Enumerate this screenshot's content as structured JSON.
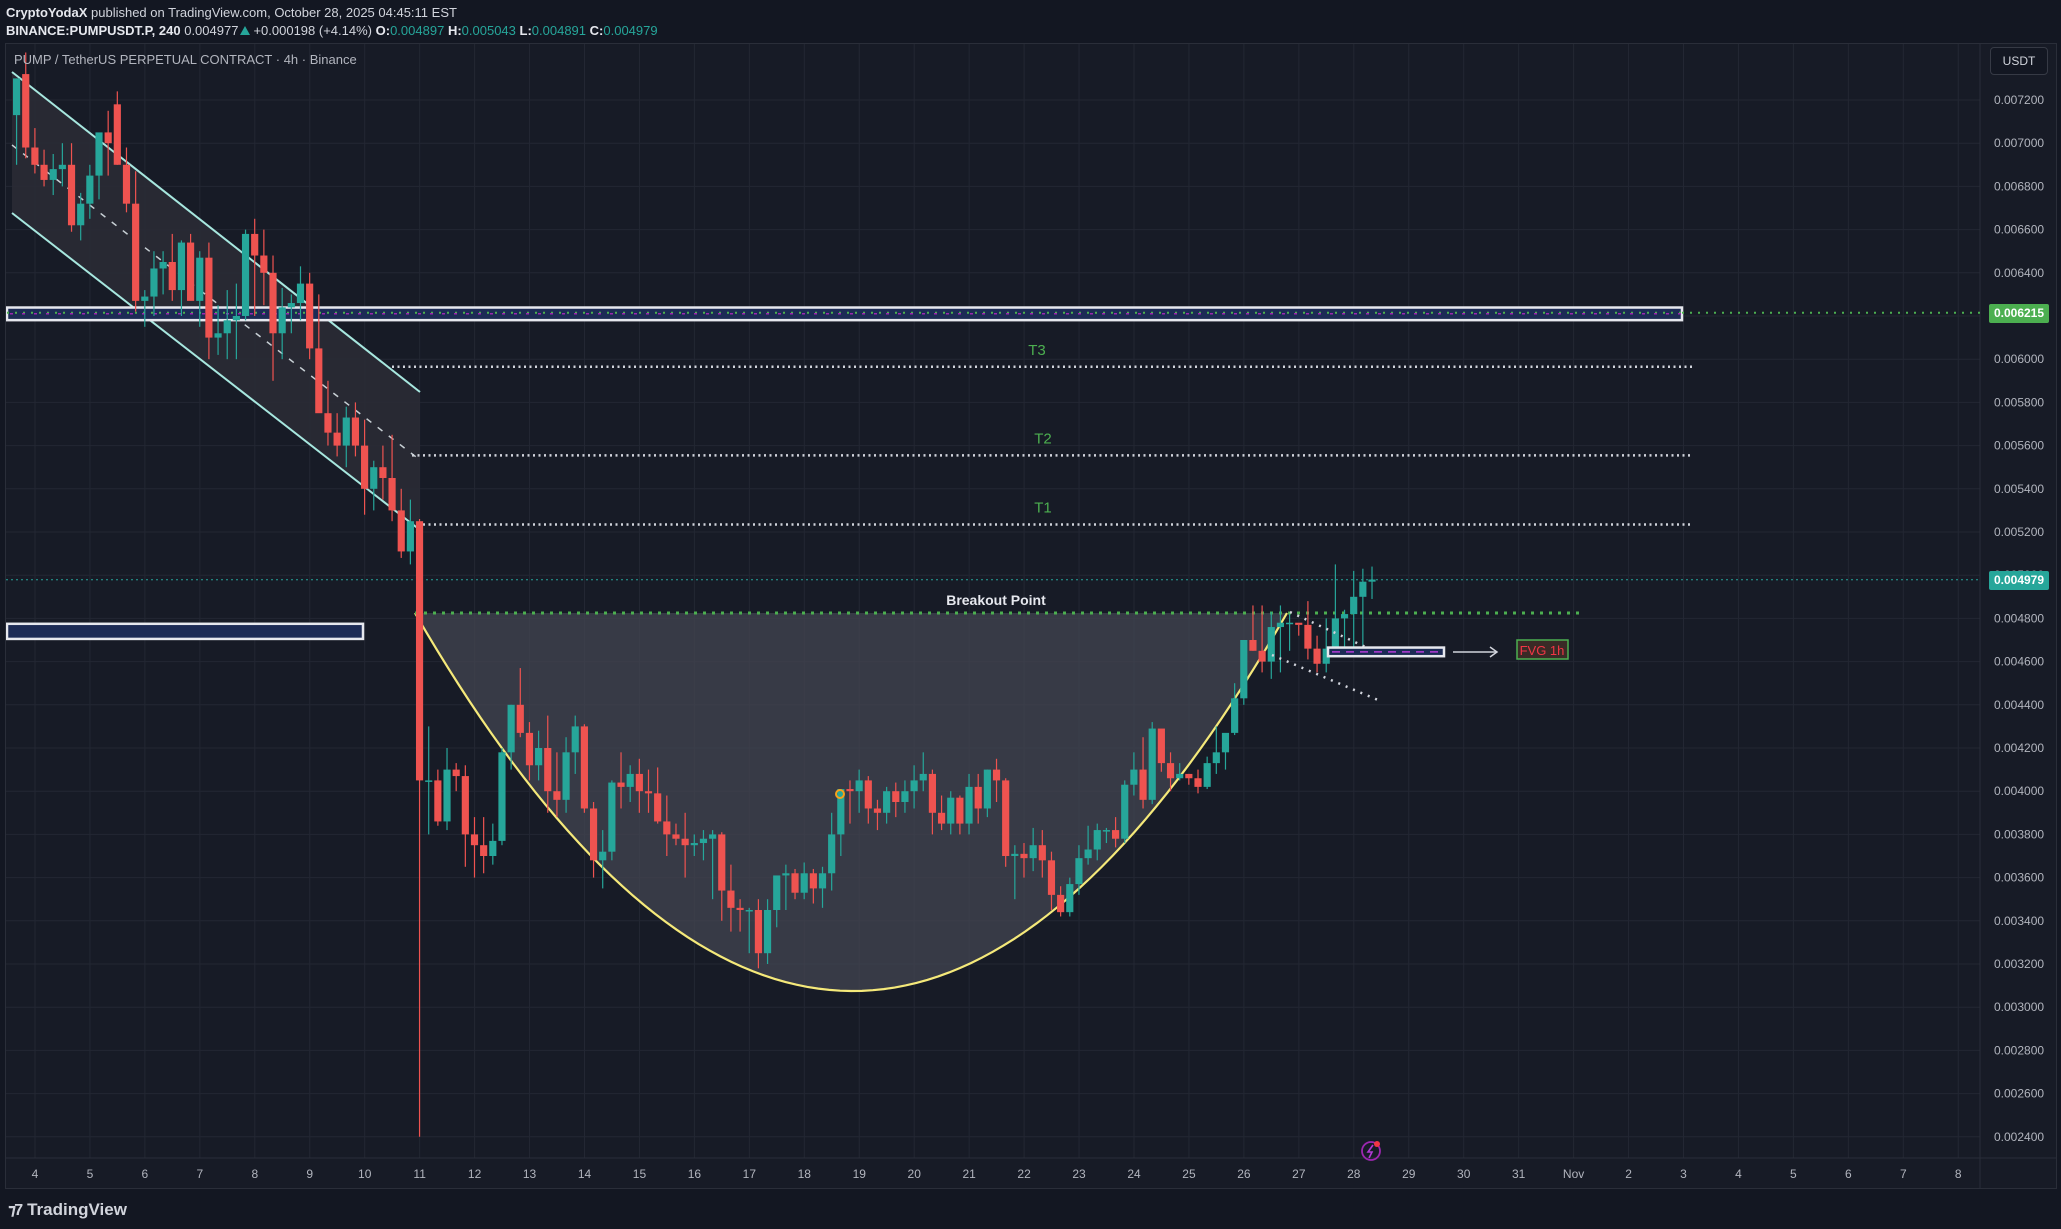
{
  "header": {
    "author": "CryptoYodaX",
    "published_text": " published on TradingView.com, October 28, 2025 04:45:11 EST",
    "symbol": "BINANCE:PUMPUSDT.P, 240",
    "last": "0.004977",
    "change": "+0.000198 (+4.14%)",
    "o_label": "O:",
    "o": "0.004897",
    "h_label": "H:",
    "h": "0.005043",
    "l_label": "L:",
    "l": "0.004891",
    "c_label": "C:",
    "c": "0.004979"
  },
  "legend": "PUMP / TetherUS PERPETUAL CONTRACT · 4h · Binance",
  "currency_button": "USDT",
  "price_tags": {
    "resistance": {
      "value": "0.006215",
      "color": "#4caf50"
    },
    "last": {
      "value": "0.004979",
      "color": "#26a69a"
    }
  },
  "footer": {
    "logo_text": "TradingView"
  },
  "colors": {
    "up": "#26a69a",
    "down": "#ef5350",
    "background": "#171b26",
    "grid": "#232733",
    "cup_line": "#f5e97a",
    "cup_fill": "#434651",
    "channel": "#a7e7df",
    "target_label": "#4caf50",
    "fvg_text": "#f23645"
  },
  "chart_data": {
    "type": "candlestick",
    "title": "PUMP / TetherUS PERPETUAL CONTRACT · 4h · Binance",
    "xlabel": "",
    "ylabel": "USDT",
    "ylim": [
      0.00226,
      0.00737
    ],
    "grid": true,
    "y_ticks": [
      "0.007200",
      "0.007000",
      "0.006800",
      "0.006600",
      "0.006400",
      "0.006200",
      "0.006000",
      "0.005800",
      "0.005600",
      "0.005400",
      "0.005200",
      "0.005000",
      "0.004800",
      "0.004600",
      "0.004400",
      "0.004200",
      "0.004000",
      "0.003800",
      "0.003600",
      "0.003400",
      "0.003200",
      "0.003000",
      "0.002800",
      "0.002600",
      "0.002400"
    ],
    "x_ticks": [
      "4",
      "5",
      "6",
      "7",
      "8",
      "9",
      "10",
      "11",
      "12",
      "13",
      "14",
      "15",
      "16",
      "17",
      "18",
      "19",
      "20",
      "21",
      "22",
      "23",
      "24",
      "25",
      "26",
      "27",
      "28",
      "29",
      "30",
      "31",
      "Nov",
      "2",
      "3",
      "4",
      "5",
      "6",
      "7",
      "8"
    ],
    "annotations": {
      "targets": [
        {
          "label": "T3",
          "price": 0.005965
        },
        {
          "label": "T2",
          "price": 0.005555
        },
        {
          "label": "T1",
          "price": 0.005235
        }
      ],
      "resistance_zone": {
        "price": 0.006215,
        "top": 0.00623,
        "bottom": 0.00619
      },
      "support_zone_left": {
        "top": 0.004775,
        "bottom": 0.004705
      },
      "breakout_point": {
        "label": "Breakout Point",
        "price": 0.004825
      },
      "fvg": {
        "label": "FVG 1h",
        "top": 0.004665,
        "bottom": 0.004625
      },
      "cup_bottom": 0.003075,
      "descending_channel": true
    },
    "candles": [
      [
        0.00713,
        0.0073,
        0.0069,
        0.0073
      ],
      [
        0.00732,
        0.00742,
        0.00693,
        0.00698
      ],
      [
        0.00698,
        0.00707,
        0.00686,
        0.0069
      ],
      [
        0.0069,
        0.00697,
        0.0068,
        0.00683
      ],
      [
        0.00683,
        0.00695,
        0.00676,
        0.00688
      ],
      [
        0.00688,
        0.007,
        0.0068,
        0.0069
      ],
      [
        0.0069,
        0.007,
        0.00659,
        0.00662
      ],
      [
        0.00662,
        0.00677,
        0.00655,
        0.00672
      ],
      [
        0.00672,
        0.0069,
        0.00665,
        0.00685
      ],
      [
        0.00685,
        0.00698,
        0.00674,
        0.00705
      ],
      [
        0.00705,
        0.00715,
        0.00685,
        0.007
      ],
      [
        0.00718,
        0.00724,
        0.0069,
        0.0069
      ],
      [
        0.0069,
        0.00698,
        0.00668,
        0.00672
      ],
      [
        0.00672,
        0.00687,
        0.00622,
        0.00627
      ],
      [
        0.00627,
        0.00632,
        0.00615,
        0.00629
      ],
      [
        0.00629,
        0.0065,
        0.0062,
        0.00642
      ],
      [
        0.00642,
        0.0065,
        0.0063,
        0.00645
      ],
      [
        0.00645,
        0.00658,
        0.00627,
        0.00632
      ],
      [
        0.00632,
        0.00655,
        0.0062,
        0.00654
      ],
      [
        0.00654,
        0.00658,
        0.0063,
        0.00627
      ],
      [
        0.00627,
        0.0065,
        0.00615,
        0.00647
      ],
      [
        0.00647,
        0.00654,
        0.006,
        0.0061
      ],
      [
        0.0061,
        0.00625,
        0.00602,
        0.00612
      ],
      [
        0.00612,
        0.00632,
        0.006,
        0.00618
      ],
      [
        0.00618,
        0.00635,
        0.006,
        0.0062
      ],
      [
        0.0062,
        0.0066,
        0.00618,
        0.00658
      ],
      [
        0.00658,
        0.00665,
        0.0062,
        0.00648
      ],
      [
        0.00648,
        0.0066,
        0.00625,
        0.0064
      ],
      [
        0.0064,
        0.00648,
        0.0059,
        0.00612
      ],
      [
        0.00612,
        0.00633,
        0.006,
        0.00624
      ],
      [
        0.00624,
        0.0063,
        0.00612,
        0.00626
      ],
      [
        0.00626,
        0.00643,
        0.00618,
        0.00635
      ],
      [
        0.00635,
        0.0064,
        0.006,
        0.00605
      ],
      [
        0.00605,
        0.0063,
        0.0059,
        0.00575
      ],
      [
        0.00575,
        0.0059,
        0.0056,
        0.00566
      ],
      [
        0.00566,
        0.00575,
        0.00555,
        0.0056
      ],
      [
        0.0056,
        0.00578,
        0.0055,
        0.00573
      ],
      [
        0.00573,
        0.0058,
        0.00555,
        0.0056
      ],
      [
        0.0056,
        0.00572,
        0.00528,
        0.0054
      ],
      [
        0.0054,
        0.00553,
        0.0053,
        0.0055
      ],
      [
        0.0055,
        0.0056,
        0.00535,
        0.00545
      ],
      [
        0.00545,
        0.00565,
        0.00525,
        0.0053
      ],
      [
        0.0053,
        0.0054,
        0.00508,
        0.00511
      ],
      [
        0.00511,
        0.00535,
        0.00505,
        0.00525
      ],
      [
        0.00525,
        0.00526,
        0.0024,
        0.00405
      ],
      [
        0.00405,
        0.0043,
        0.0038,
        0.00405
      ],
      [
        0.00405,
        0.0041,
        0.00384,
        0.00386
      ],
      [
        0.00386,
        0.0042,
        0.00382,
        0.0041
      ],
      [
        0.0041,
        0.00413,
        0.004,
        0.00407
      ],
      [
        0.00407,
        0.00412,
        0.00365,
        0.0038
      ],
      [
        0.0038,
        0.00388,
        0.0036,
        0.00375
      ],
      [
        0.00375,
        0.00388,
        0.00362,
        0.0037
      ],
      [
        0.0037,
        0.00385,
        0.00366,
        0.00377
      ],
      [
        0.00377,
        0.0042,
        0.00375,
        0.00418
      ],
      [
        0.00418,
        0.0044,
        0.0041,
        0.0044
      ],
      [
        0.0044,
        0.00457,
        0.00425,
        0.00427
      ],
      [
        0.00427,
        0.00432,
        0.00405,
        0.00412
      ],
      [
        0.00412,
        0.00428,
        0.00405,
        0.0042
      ],
      [
        0.0042,
        0.00435,
        0.0039,
        0.004
      ],
      [
        0.004,
        0.00418,
        0.00388,
        0.00396
      ],
      [
        0.00396,
        0.00425,
        0.0039,
        0.00418
      ],
      [
        0.00418,
        0.00435,
        0.00408,
        0.0043
      ],
      [
        0.0043,
        0.00431,
        0.0039,
        0.00392
      ],
      [
        0.00392,
        0.00395,
        0.0036,
        0.00368
      ],
      [
        0.00368,
        0.00382,
        0.00355,
        0.00372
      ],
      [
        0.00372,
        0.00405,
        0.00368,
        0.00404
      ],
      [
        0.00404,
        0.00418,
        0.00392,
        0.00402
      ],
      [
        0.00402,
        0.00412,
        0.00395,
        0.00408
      ],
      [
        0.00408,
        0.00415,
        0.0039,
        0.004
      ],
      [
        0.004,
        0.0041,
        0.0039,
        0.00399
      ],
      [
        0.00399,
        0.00411,
        0.00385,
        0.00386
      ],
      [
        0.00386,
        0.00398,
        0.0037,
        0.0038
      ],
      [
        0.0038,
        0.00385,
        0.00375,
        0.00378
      ],
      [
        0.00378,
        0.0039,
        0.0036,
        0.00375
      ],
      [
        0.00375,
        0.0038,
        0.0037,
        0.00376
      ],
      [
        0.00376,
        0.00382,
        0.00368,
        0.00378
      ],
      [
        0.00378,
        0.00382,
        0.0035,
        0.0038
      ],
      [
        0.0038,
        0.00381,
        0.0034,
        0.00354
      ],
      [
        0.00354,
        0.00366,
        0.00335,
        0.00346
      ],
      [
        0.00346,
        0.0035,
        0.00335,
        0.00345
      ],
      [
        0.00345,
        0.00346,
        0.00325,
        0.00345
      ],
      [
        0.00345,
        0.0035,
        0.00318,
        0.00325
      ],
      [
        0.00325,
        0.0035,
        0.0032,
        0.00345
      ],
      [
        0.00345,
        0.00357,
        0.00337,
        0.00361
      ],
      [
        0.00361,
        0.00366,
        0.00345,
        0.00362
      ],
      [
        0.00362,
        0.00364,
        0.0035,
        0.00353
      ],
      [
        0.00353,
        0.00367,
        0.0035,
        0.00362
      ],
      [
        0.00362,
        0.00364,
        0.00348,
        0.00355
      ],
      [
        0.00355,
        0.00365,
        0.00346,
        0.00362
      ],
      [
        0.00362,
        0.0039,
        0.00354,
        0.0038
      ],
      [
        0.0038,
        0.004,
        0.0037,
        0.00401
      ],
      [
        0.00401,
        0.00405,
        0.00385,
        0.004
      ],
      [
        0.004,
        0.0041,
        0.0039,
        0.00405
      ],
      [
        0.00405,
        0.00407,
        0.00385,
        0.00392
      ],
      [
        0.00392,
        0.00396,
        0.00382,
        0.0039
      ],
      [
        0.0039,
        0.00402,
        0.00385,
        0.004
      ],
      [
        0.004,
        0.00404,
        0.00388,
        0.00395
      ],
      [
        0.00395,
        0.00405,
        0.0039,
        0.004
      ],
      [
        0.004,
        0.00412,
        0.00392,
        0.00405
      ],
      [
        0.00405,
        0.00418,
        0.004,
        0.00408
      ],
      [
        0.00408,
        0.0041,
        0.0038,
        0.0039
      ],
      [
        0.0039,
        0.00398,
        0.00382,
        0.00385
      ],
      [
        0.00385,
        0.004,
        0.0038,
        0.00397
      ],
      [
        0.00397,
        0.00398,
        0.0038,
        0.00385
      ],
      [
        0.00385,
        0.00408,
        0.0038,
        0.00402
      ],
      [
        0.00402,
        0.00408,
        0.00385,
        0.00392
      ],
      [
        0.00392,
        0.0041,
        0.00388,
        0.0041
      ],
      [
        0.0041,
        0.00415,
        0.00395,
        0.00405
      ],
      [
        0.00405,
        0.00406,
        0.00365,
        0.0037
      ],
      [
        0.0037,
        0.00375,
        0.0035,
        0.00371
      ],
      [
        0.00371,
        0.00376,
        0.0036,
        0.00369
      ],
      [
        0.00369,
        0.00383,
        0.00363,
        0.00375
      ],
      [
        0.00375,
        0.00382,
        0.0036,
        0.00368
      ],
      [
        0.00368,
        0.00372,
        0.00345,
        0.00352
      ],
      [
        0.00352,
        0.00356,
        0.00342,
        0.00344
      ],
      [
        0.00344,
        0.0036,
        0.00342,
        0.00357
      ],
      [
        0.00357,
        0.00375,
        0.00352,
        0.00369
      ],
      [
        0.00369,
        0.00384,
        0.00366,
        0.00373
      ],
      [
        0.00373,
        0.00385,
        0.00368,
        0.00382
      ],
      [
        0.00382,
        0.00383,
        0.00376,
        0.00382
      ],
      [
        0.00382,
        0.00388,
        0.00374,
        0.00378
      ],
      [
        0.00378,
        0.00405,
        0.00376,
        0.00403
      ],
      [
        0.00403,
        0.00418,
        0.00398,
        0.0041
      ],
      [
        0.0041,
        0.00425,
        0.00392,
        0.00396
      ],
      [
        0.00396,
        0.00432,
        0.00394,
        0.00429
      ],
      [
        0.00429,
        0.00426,
        0.00409,
        0.00413
      ],
      [
        0.00413,
        0.00418,
        0.004,
        0.00406
      ],
      [
        0.00406,
        0.00413,
        0.00405,
        0.00408
      ],
      [
        0.00408,
        0.00408,
        0.00403,
        0.00406
      ],
      [
        0.00406,
        0.0041,
        0.00399,
        0.00402
      ],
      [
        0.00402,
        0.00416,
        0.00401,
        0.00413
      ],
      [
        0.00413,
        0.0043,
        0.00408,
        0.00418
      ],
      [
        0.00418,
        0.00425,
        0.0041,
        0.00427
      ],
      [
        0.00427,
        0.0045,
        0.00426,
        0.00443
      ],
      [
        0.00443,
        0.0047,
        0.0044,
        0.0047
      ],
      [
        0.0047,
        0.00486,
        0.00465,
        0.00465
      ],
      [
        0.00465,
        0.00486,
        0.00455,
        0.0046
      ],
      [
        0.0046,
        0.00483,
        0.00452,
        0.00476
      ],
      [
        0.00476,
        0.00486,
        0.00455,
        0.00478
      ],
      [
        0.00478,
        0.00482,
        0.00465,
        0.00478
      ],
      [
        0.00478,
        0.00477,
        0.00472,
        0.00477
      ],
      [
        0.00477,
        0.00488,
        0.00461,
        0.00466
      ],
      [
        0.00466,
        0.00472,
        0.00455,
        0.00459
      ],
      [
        0.00459,
        0.0048,
        0.00455,
        0.00466
      ],
      [
        0.00466,
        0.00505,
        0.00465,
        0.0048
      ],
      [
        0.0048,
        0.00484,
        0.00467,
        0.00482
      ],
      [
        0.00482,
        0.00502,
        0.00465,
        0.0049
      ],
      [
        0.0049,
        0.00503,
        0.00462,
        0.00497
      ],
      [
        0.00497,
        0.00504,
        0.00489,
        0.00498
      ]
    ]
  }
}
